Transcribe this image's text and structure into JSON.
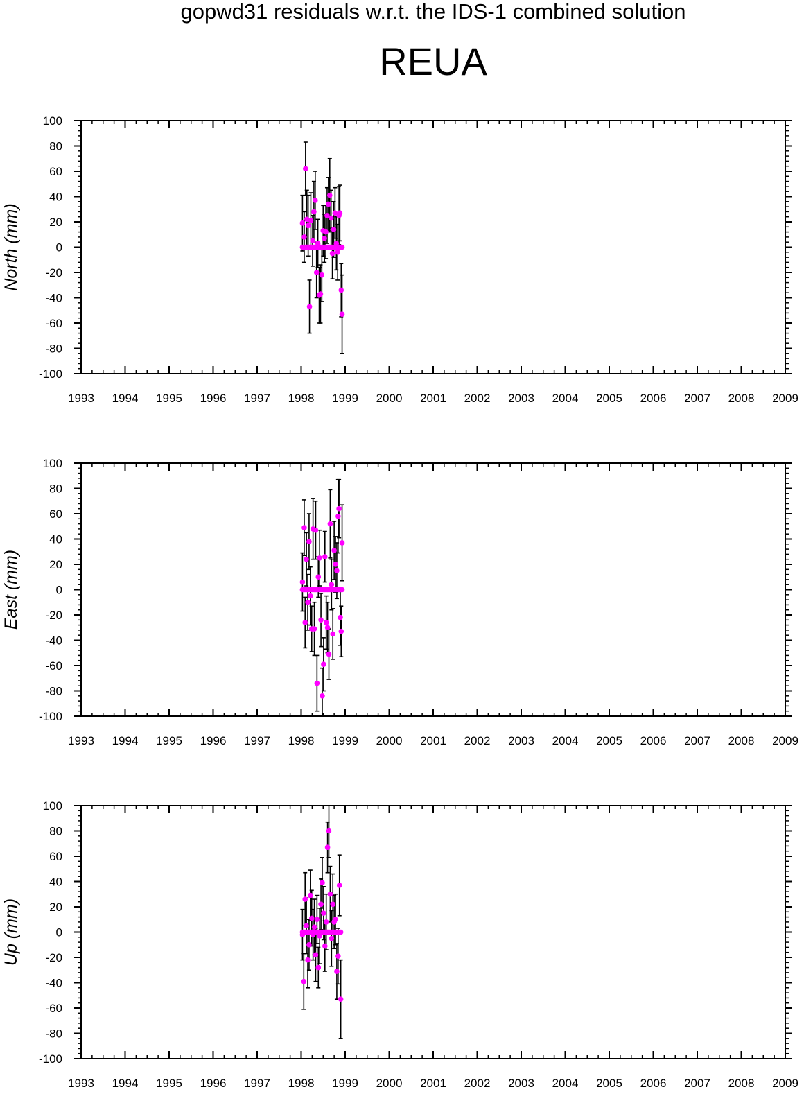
{
  "title": "gopwd31 residuals w.r.t. the IDS-1 combined solution",
  "subtitle": "REUA",
  "colors": {
    "points": "#ff00ff",
    "errorbars": "#000000",
    "frame": "#000000"
  },
  "chart_data": [
    {
      "type": "scatter",
      "ylabel": "North (mm)",
      "xlim": [
        1993,
        2009
      ],
      "ylim": [
        -100,
        100
      ],
      "xticks": [
        "1993",
        "1994",
        "1995",
        "1996",
        "1997",
        "1998",
        "1999",
        "2000",
        "2001",
        "2002",
        "2003",
        "2004",
        "2005",
        "2006",
        "2007",
        "2008",
        "2009"
      ],
      "yticks": [
        "100",
        "80",
        "60",
        "40",
        "20",
        "0",
        "-20",
        "-40",
        "-60",
        "-80",
        "-100"
      ],
      "grid": false,
      "points": [
        [
          1998.03,
          19,
          22
        ],
        [
          1998.07,
          8,
          20
        ],
        [
          1998.1,
          62,
          21
        ],
        [
          1998.13,
          22,
          23
        ],
        [
          1998.16,
          17,
          24
        ],
        [
          1998.19,
          -47,
          21
        ],
        [
          1998.22,
          21,
          22
        ],
        [
          1998.26,
          5,
          20
        ],
        [
          1998.29,
          28,
          24
        ],
        [
          1998.32,
          37,
          23
        ],
        [
          1998.35,
          -20,
          20
        ],
        [
          1998.38,
          3,
          19
        ],
        [
          1998.41,
          -38,
          22
        ],
        [
          1998.44,
          -37,
          23
        ],
        [
          1998.47,
          -22,
          21
        ],
        [
          1998.5,
          13,
          20
        ],
        [
          1998.53,
          7,
          19
        ],
        [
          1998.56,
          12,
          21
        ],
        [
          1998.59,
          25,
          22
        ],
        [
          1998.62,
          34,
          21
        ],
        [
          1998.65,
          41,
          29
        ],
        [
          1998.68,
          23,
          22
        ],
        [
          1998.71,
          -5,
          20
        ],
        [
          1998.74,
          14,
          22
        ],
        [
          1998.77,
          27,
          20
        ],
        [
          1998.8,
          3,
          21
        ],
        [
          1998.83,
          -4,
          22
        ],
        [
          1998.86,
          25,
          23
        ],
        [
          1998.88,
          27,
          22
        ],
        [
          1998.91,
          -34,
          21
        ],
        [
          1998.93,
          -53,
          31
        ]
      ]
    },
    {
      "type": "scatter",
      "ylabel": "East (mm)",
      "xlim": [
        1993,
        2009
      ],
      "ylim": [
        -100,
        100
      ],
      "xticks": [
        "1993",
        "1994",
        "1995",
        "1996",
        "1997",
        "1998",
        "1999",
        "2000",
        "2001",
        "2002",
        "2003",
        "2004",
        "2005",
        "2006",
        "2007",
        "2008",
        "2009"
      ],
      "yticks": [
        "100",
        "80",
        "60",
        "40",
        "20",
        "0",
        "-20",
        "-40",
        "-60",
        "-80",
        "-100"
      ],
      "grid": false,
      "points": [
        [
          1998.03,
          6,
          23
        ],
        [
          1998.07,
          49,
          22
        ],
        [
          1998.09,
          -26,
          20
        ],
        [
          1998.12,
          24,
          21
        ],
        [
          1998.15,
          -10,
          22
        ],
        [
          1998.18,
          38,
          22
        ],
        [
          1998.21,
          -5,
          23
        ],
        [
          1998.24,
          -31,
          18
        ],
        [
          1998.27,
          48,
          24
        ],
        [
          1998.3,
          -31,
          21
        ],
        [
          1998.33,
          47,
          23
        ],
        [
          1998.36,
          -74,
          22
        ],
        [
          1998.39,
          10,
          16
        ],
        [
          1998.42,
          25,
          22
        ],
        [
          1998.45,
          -24,
          21
        ],
        [
          1998.48,
          -84,
          22
        ],
        [
          1998.51,
          -59,
          21
        ],
        [
          1998.54,
          26,
          20
        ],
        [
          1998.57,
          -26,
          21
        ],
        [
          1998.6,
          -30,
          20
        ],
        [
          1998.63,
          -51,
          20
        ],
        [
          1998.66,
          52,
          27
        ],
        [
          1998.69,
          4,
          20
        ],
        [
          1998.72,
          -35,
          20
        ],
        [
          1998.75,
          31,
          23
        ],
        [
          1998.78,
          20,
          22
        ],
        [
          1998.81,
          15,
          22
        ],
        [
          1998.84,
          58,
          29
        ],
        [
          1998.86,
          64,
          23
        ],
        [
          1998.89,
          -22,
          22
        ],
        [
          1998.91,
          -33,
          20
        ],
        [
          1998.93,
          37,
          30
        ]
      ]
    },
    {
      "type": "scatter",
      "ylabel": "Up (mm)",
      "xlim": [
        1993,
        2009
      ],
      "ylim": [
        -100,
        100
      ],
      "xticks": [
        "1993",
        "1994",
        "1995",
        "1996",
        "1997",
        "1998",
        "1999",
        "2000",
        "2001",
        "2002",
        "2003",
        "2004",
        "2005",
        "2006",
        "2007",
        "2008",
        "2009"
      ],
      "yticks": [
        "100",
        "80",
        "60",
        "40",
        "20",
        "0",
        "-20",
        "-40",
        "-60",
        "-80",
        "-100"
      ],
      "grid": false,
      "points": [
        [
          1998.03,
          -2,
          20
        ],
        [
          1998.06,
          -39,
          22
        ],
        [
          1998.09,
          26,
          21
        ],
        [
          1998.12,
          5,
          22
        ],
        [
          1998.15,
          -22,
          22
        ],
        [
          1998.18,
          -10,
          20
        ],
        [
          1998.21,
          29,
          20
        ],
        [
          1998.24,
          11,
          22
        ],
        [
          1998.27,
          -2,
          20
        ],
        [
          1998.3,
          4,
          22
        ],
        [
          1998.33,
          -18,
          21
        ],
        [
          1998.36,
          10,
          19
        ],
        [
          1998.39,
          -28,
          16
        ],
        [
          1998.42,
          -3,
          22
        ],
        [
          1998.45,
          22,
          20
        ],
        [
          1998.48,
          39,
          20
        ],
        [
          1998.51,
          15,
          21
        ],
        [
          1998.54,
          -11,
          20
        ],
        [
          1998.57,
          8,
          22
        ],
        [
          1998.6,
          67,
          20
        ],
        [
          1998.63,
          80,
          21
        ],
        [
          1998.66,
          30,
          22
        ],
        [
          1998.69,
          -5,
          22
        ],
        [
          1998.72,
          22,
          24
        ],
        [
          1998.75,
          8,
          21
        ],
        [
          1998.78,
          10,
          20
        ],
        [
          1998.81,
          -31,
          22
        ],
        [
          1998.84,
          -19,
          22
        ],
        [
          1998.87,
          37,
          24
        ],
        [
          1998.9,
          -53,
          31
        ]
      ]
    }
  ]
}
